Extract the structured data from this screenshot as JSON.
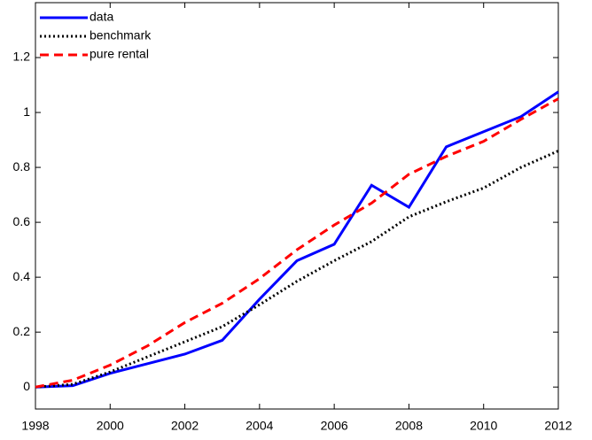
{
  "chart_data": {
    "type": "line",
    "x": [
      1998,
      1999,
      2000,
      2001,
      2002,
      2003,
      2004,
      2005,
      2006,
      2007,
      2008,
      2009,
      2010,
      2011,
      2012
    ],
    "series": [
      {
        "name": "data",
        "color": "#0000ff",
        "dash": "solid",
        "values": [
          0,
          0.005,
          0.05,
          0.085,
          0.12,
          0.17,
          0.32,
          0.46,
          0.52,
          0.735,
          0.655,
          0.875,
          0.93,
          0.985,
          1.075
        ]
      },
      {
        "name": "benchmark",
        "color": "#000000",
        "dash": "dotted",
        "values": [
          0,
          0.01,
          0.055,
          0.11,
          0.165,
          0.22,
          0.3,
          0.385,
          0.46,
          0.53,
          0.62,
          0.675,
          0.725,
          0.8,
          0.86
        ]
      },
      {
        "name": "pure rental",
        "color": "#ff0000",
        "dash": "dashed",
        "values": [
          0,
          0.025,
          0.08,
          0.15,
          0.235,
          0.305,
          0.395,
          0.5,
          0.59,
          0.67,
          0.775,
          0.84,
          0.895,
          0.975,
          1.05
        ]
      }
    ],
    "xlim": [
      1998,
      2012
    ],
    "xticks": [
      1998,
      2000,
      2002,
      2004,
      2006,
      2008,
      2010,
      2012
    ],
    "ylim": [
      -0.08,
      1.4
    ],
    "yticks": [
      0,
      0.2,
      0.4,
      0.6,
      0.8,
      1,
      1.2
    ],
    "grid": false,
    "legend": "upper-left"
  }
}
